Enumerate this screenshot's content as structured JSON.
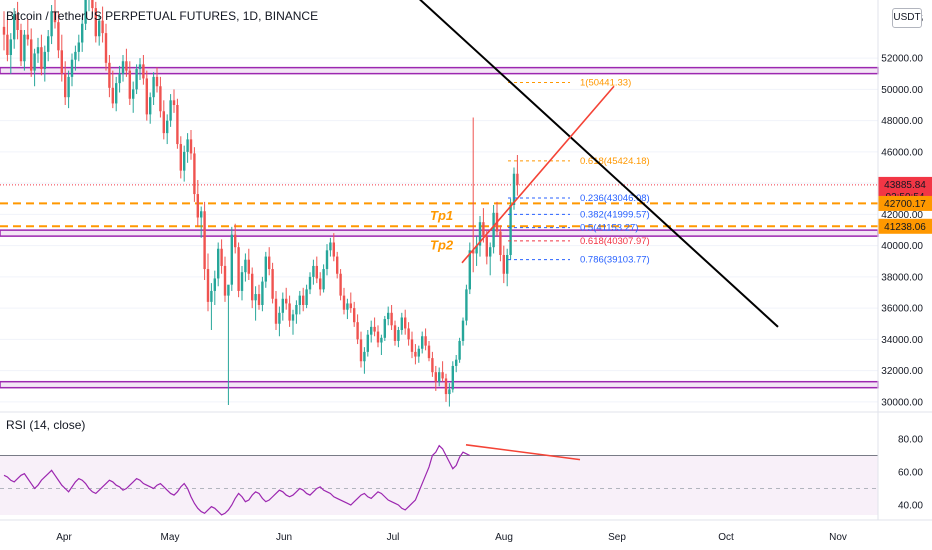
{
  "header": {
    "title": "Bitcoin / TetherUS PERPETUAL FUTURES, 1D, BINANCE",
    "currency": "USDT"
  },
  "rsi_panel": {
    "title": "RSI (14, close)"
  },
  "colors": {
    "up": "#26a69a",
    "down": "#ef5350",
    "zone": "#9c27b0",
    "fib_blue": "#2962ff",
    "fib_orange": "#ff9800",
    "fib_red": "#f23645",
    "trend": "#000000",
    "channel": "#f44336",
    "rsi": "#9c27b0"
  },
  "chart_data": [
    {
      "type": "candlestick",
      "xlabel": "",
      "ylabel": "",
      "x_ticks": [
        "Apr",
        "May",
        "Jun",
        "Jul",
        "Aug",
        "Sep",
        "Oct",
        "Nov"
      ],
      "y_ticks": [
        30000,
        32000,
        34000,
        36000,
        38000,
        40000,
        42000,
        44000,
        46000,
        48000,
        50000,
        52000
      ],
      "y_tick_labels": [
        "30000.00",
        "32000.00",
        "34000.00",
        "36000.00",
        "38000.00",
        "40000.00",
        "42000.00",
        "44000.00",
        "46000.00",
        "48000.00",
        "50000.00",
        "52000.00"
      ],
      "top_tick_label": "5",
      "ylim": [
        29800,
        54000
      ],
      "price_labels": [
        {
          "value": 43885.84,
          "text": "43885.84",
          "sub": "02:50:54",
          "color": "#f23645"
        },
        {
          "value": 42700.17,
          "text": "42700.17",
          "color": "#ff9800"
        },
        {
          "value": 41238.06,
          "text": "41238.06",
          "color": "#ff9800"
        }
      ],
      "horizontal_zones": [
        {
          "value": 51200,
          "color": "#9c27b0"
        },
        {
          "value": 40800,
          "color": "#9c27b0"
        },
        {
          "value": 31100,
          "color": "#9c27b0"
        }
      ],
      "dashed_levels": [
        {
          "value": 42700.17,
          "color": "#ff9800"
        },
        {
          "value": 41238.06,
          "color": "#ff9800"
        },
        {
          "value": 43885.84,
          "color": "#f23645",
          "style": "dotted"
        }
      ],
      "fib_levels": [
        {
          "label": "1(50441.33)",
          "value": 50441.33,
          "color": "#ff9800"
        },
        {
          "label": "0.618(45424.18)",
          "value": 45424.18,
          "color": "#ff9800"
        },
        {
          "label": "0.236(43046.08)",
          "value": 43046.08,
          "color": "#2962ff"
        },
        {
          "label": "0.382(41999.57)",
          "value": 41999.57,
          "color": "#2962ff"
        },
        {
          "label": "0.5(41153.27)",
          "value": 41153.27,
          "color": "#2962ff"
        },
        {
          "label": "0.618(40307.97)",
          "value": 40307.97,
          "color": "#f23645"
        },
        {
          "label": "0.786(39103.77)",
          "value": 39103.77,
          "color": "#2962ff"
        }
      ],
      "annotations": [
        {
          "text": "Tp1",
          "value": 41900
        },
        {
          "text": "Tp2",
          "value": 40000
        }
      ],
      "trendline": {
        "from": [
          320,
          61600
        ],
        "to": [
          778,
          34800
        ]
      },
      "channel_line": {
        "from": [
          462,
          38900
        ],
        "to": [
          614,
          50200
        ]
      },
      "candles_apr_aug": [
        [
          54000,
          55000,
          52500,
          53500
        ],
        [
          53500,
          54500,
          51800,
          52200
        ],
        [
          52200,
          53600,
          51000,
          53200
        ],
        [
          53200,
          55200,
          52600,
          54800
        ],
        [
          54800,
          55600,
          53200,
          53800
        ],
        [
          53800,
          54200,
          51500,
          51800
        ],
        [
          51800,
          53800,
          51200,
          53500
        ],
        [
          53500,
          54500,
          52800,
          53200
        ],
        [
          53200,
          53900,
          50800,
          51200
        ],
        [
          51200,
          52600,
          50200,
          52300
        ],
        [
          52300,
          53300,
          51700,
          52700
        ],
        [
          52700,
          53500,
          50900,
          51300
        ],
        [
          51300,
          52800,
          50500,
          52400
        ],
        [
          52400,
          53800,
          51800,
          53400
        ],
        [
          53400,
          55400,
          52900,
          55000
        ],
        [
          55000,
          56000,
          53900,
          54300
        ],
        [
          54300,
          55000,
          52000,
          52500
        ],
        [
          52500,
          53500,
          50500,
          51000
        ],
        [
          51000,
          51800,
          49000,
          49500
        ],
        [
          49500,
          51200,
          48800,
          50800
        ],
        [
          50800,
          52300,
          50200,
          51900
        ],
        [
          51900,
          52800,
          51200,
          52400
        ],
        [
          52400,
          53500,
          51800,
          53000
        ],
        [
          53000,
          54600,
          52400,
          54200
        ],
        [
          54200,
          56200,
          53800,
          55800
        ],
        [
          55800,
          57000,
          55000,
          56200
        ],
        [
          56200,
          56800,
          54800,
          55200
        ],
        [
          55200,
          55600,
          53000,
          53400
        ],
        [
          53400,
          54800,
          52800,
          54400
        ],
        [
          54400,
          55300,
          53000,
          53600
        ],
        [
          53600,
          54200,
          51200,
          51700
        ],
        [
          51700,
          52200,
          49500,
          50100
        ],
        [
          50100,
          51200,
          48800,
          49100
        ],
        [
          49100,
          50800,
          48600,
          50400
        ],
        [
          50400,
          51500,
          49800,
          51000
        ],
        [
          51000,
          52200,
          50500,
          51800
        ],
        [
          51800,
          52600,
          50800,
          51200
        ],
        [
          51200,
          51800,
          49000,
          49400
        ],
        [
          49400,
          50500,
          48500,
          50000
        ],
        [
          50000,
          51600,
          49700,
          51300
        ],
        [
          51300,
          52000,
          50600,
          51600
        ],
        [
          51600,
          52200,
          50300,
          50700
        ],
        [
          50700,
          51200,
          48000,
          48400
        ],
        [
          48400,
          49800,
          47800,
          49500
        ],
        [
          49500,
          51100,
          49000,
          50800
        ],
        [
          50800,
          51400,
          49800,
          50200
        ],
        [
          50200,
          50800,
          48200,
          48600
        ],
        [
          48600,
          49300,
          46800,
          47200
        ],
        [
          47200,
          48400,
          46500,
          48000
        ],
        [
          48000,
          49700,
          47600,
          49300
        ],
        [
          49300,
          50000,
          48500,
          49000
        ],
        [
          49000,
          49400,
          46200,
          46500
        ],
        [
          46500,
          47000,
          44300,
          44800
        ],
        [
          44800,
          46400,
          44100,
          46000
        ],
        [
          46000,
          47200,
          45300,
          46800
        ],
        [
          46800,
          47400,
          45500,
          45900
        ],
        [
          45900,
          46300,
          42800,
          43300
        ],
        [
          43300,
          44200,
          41200,
          41800
        ],
        [
          41800,
          42500,
          40500,
          42200
        ],
        [
          42200,
          42800,
          37800,
          38500
        ],
        [
          38500,
          39500,
          35800,
          36400
        ],
        [
          36400,
          37600,
          34600,
          37100
        ],
        [
          37100,
          38400,
          36200,
          37900
        ],
        [
          37900,
          40200,
          37400,
          39800
        ],
        [
          39800,
          40400,
          38200,
          38700
        ],
        [
          38700,
          39300,
          36400,
          36800
        ],
        [
          36800,
          37200,
          29800,
          37500
        ],
        [
          37500,
          41200,
          37100,
          40700
        ],
        [
          40700,
          41400,
          39500,
          39900
        ],
        [
          39900,
          40200,
          36700,
          37100
        ],
        [
          37100,
          38700,
          36500,
          38300
        ],
        [
          38300,
          39500,
          37700,
          39100
        ],
        [
          39100,
          39800,
          37800,
          38200
        ],
        [
          38200,
          38600,
          36000,
          36500
        ],
        [
          36500,
          37400,
          35200,
          36900
        ],
        [
          36900,
          37500,
          35900,
          36200
        ],
        [
          36200,
          38000,
          35800,
          37700
        ],
        [
          37700,
          39600,
          37300,
          39300
        ],
        [
          39300,
          39900,
          38100,
          38500
        ],
        [
          38500,
          38900,
          36300,
          36600
        ],
        [
          36600,
          37100,
          34600,
          35000
        ],
        [
          35000,
          36100,
          34200,
          35700
        ],
        [
          35700,
          37000,
          35200,
          36600
        ],
        [
          36600,
          37300,
          35900,
          36300
        ],
        [
          36300,
          36800,
          34800,
          35200
        ],
        [
          35200,
          35900,
          34300,
          35600
        ],
        [
          35600,
          36500,
          35000,
          36200
        ],
        [
          36200,
          37100,
          35600,
          36800
        ],
        [
          36800,
          37300,
          35800,
          36200
        ],
        [
          36200,
          37500,
          36000,
          37200
        ],
        [
          37200,
          38300,
          36900,
          38000
        ],
        [
          38000,
          39100,
          37500,
          38700
        ],
        [
          38700,
          39300,
          37600,
          37900
        ],
        [
          37900,
          38300,
          36800,
          37200
        ],
        [
          37200,
          38800,
          37000,
          38500
        ],
        [
          38500,
          40100,
          38100,
          39700
        ],
        [
          39700,
          40500,
          39300,
          40200
        ],
        [
          40200,
          40800,
          39000,
          39300
        ],
        [
          39300,
          39600,
          37900,
          38200
        ],
        [
          38200,
          38500,
          36500,
          36800
        ],
        [
          36800,
          37300,
          35600,
          35900
        ],
        [
          35900,
          36600,
          35300,
          36300
        ],
        [
          36300,
          37000,
          35700,
          36000
        ],
        [
          36000,
          36400,
          34800,
          35100
        ],
        [
          35100,
          35600,
          33700,
          34000
        ],
        [
          34000,
          34500,
          32200,
          32600
        ],
        [
          32600,
          33500,
          31800,
          33200
        ],
        [
          33200,
          34600,
          32900,
          34300
        ],
        [
          34300,
          35200,
          33800,
          34800
        ],
        [
          34800,
          35400,
          34200,
          34500
        ],
        [
          34500,
          34900,
          33500,
          33800
        ],
        [
          33800,
          34300,
          33000,
          34100
        ],
        [
          34100,
          35500,
          33900,
          35300
        ],
        [
          35300,
          36100,
          34900,
          35700
        ],
        [
          35700,
          36200,
          34600,
          34900
        ],
        [
          34900,
          35200,
          33600,
          33900
        ],
        [
          33900,
          34800,
          33500,
          34600
        ],
        [
          34600,
          35700,
          34300,
          35400
        ],
        [
          35400,
          35900,
          34300,
          34700
        ],
        [
          34700,
          35100,
          33600,
          34000
        ],
        [
          34000,
          34500,
          32800,
          33200
        ],
        [
          33200,
          33700,
          32400,
          32900
        ],
        [
          32900,
          33600,
          32500,
          33400
        ],
        [
          33400,
          34500,
          33100,
          34200
        ],
        [
          34200,
          34700,
          33300,
          33600
        ],
        [
          33600,
          33900,
          32600,
          32800
        ],
        [
          32800,
          33200,
          31600,
          31900
        ],
        [
          31900,
          32300,
          30700,
          31300
        ],
        [
          31300,
          32200,
          31000,
          31900
        ],
        [
          31900,
          32600,
          31300,
          31500
        ],
        [
          31500,
          31800,
          30000,
          30500
        ],
        [
          30500,
          31200,
          29700,
          30800
        ],
        [
          30800,
          32600,
          30600,
          32300
        ],
        [
          32300,
          33000,
          31900,
          32700
        ],
        [
          32700,
          34100,
          32500,
          33900
        ],
        [
          33900,
          35400,
          33600,
          35200
        ],
        [
          35200,
          37500,
          34900,
          37200
        ],
        [
          37200,
          40200,
          36900,
          39700
        ],
        [
          39700,
          48200,
          38300,
          39500
        ],
        [
          39500,
          40600,
          38700,
          40000
        ],
        [
          40000,
          41900,
          39300,
          41500
        ],
        [
          41500,
          42400,
          40200,
          40600
        ],
        [
          40600,
          41000,
          38800,
          39300
        ],
        [
          39300,
          40200,
          38100,
          39900
        ],
        [
          39900,
          42600,
          39500,
          42100
        ],
        [
          42100,
          42800,
          40600,
          40900
        ],
        [
          40900,
          41300,
          39000,
          39400
        ],
        [
          39400,
          40000,
          37600,
          38200
        ],
        [
          38200,
          39800,
          37400,
          39400
        ],
        [
          39400,
          43000,
          39100,
          42600
        ],
        [
          42600,
          45000,
          42300,
          44600
        ],
        [
          44600,
          45800,
          43200,
          43900
        ]
      ]
    },
    {
      "type": "line",
      "title": "RSI (14, close)",
      "ylim": [
        35,
        85
      ],
      "y_ticks": [
        40,
        60,
        80
      ],
      "y_tick_labels": [
        "40.00",
        "60.00",
        "80.00"
      ],
      "overbought": 70,
      "oversold": 30,
      "midline": 50,
      "divergence_line": {
        "from": [
          466,
          76.5
        ],
        "to": [
          580,
          67.5
        ]
      },
      "values": [
        58,
        57,
        55,
        54,
        56,
        58,
        59,
        56,
        53,
        50,
        52,
        55,
        57,
        59,
        61,
        58,
        55,
        52,
        50,
        48,
        51,
        54,
        56,
        55,
        53,
        50,
        48,
        47,
        49,
        51,
        53,
        55,
        54,
        52,
        51,
        49,
        50,
        52,
        54,
        56,
        55,
        53,
        52,
        51,
        50,
        52,
        53,
        51,
        49,
        47,
        46,
        48,
        51,
        53,
        50,
        45,
        41,
        38,
        36,
        35,
        37,
        39,
        38,
        36,
        34,
        35,
        37,
        40,
        44,
        47,
        45,
        42,
        43,
        46,
        48,
        47,
        44,
        42,
        43,
        45,
        47,
        49,
        48,
        46,
        45,
        46,
        48,
        50,
        49,
        47,
        46,
        48,
        50,
        51,
        49,
        48,
        47,
        45,
        44,
        43,
        42,
        41,
        40,
        42,
        44,
        46,
        47,
        45,
        44,
        46,
        48,
        47,
        45,
        43,
        42,
        41,
        40,
        38,
        37,
        39,
        41,
        43,
        48,
        53,
        58,
        63,
        70,
        72,
        76,
        74,
        70,
        66,
        62,
        64,
        69,
        72,
        71,
        70
      ]
    }
  ]
}
